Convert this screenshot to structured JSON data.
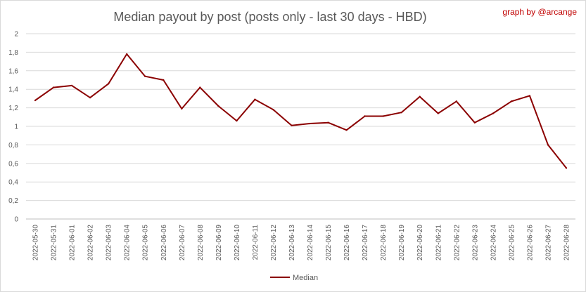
{
  "chart_data": {
    "type": "line",
    "title": "Median payout by post (posts only - last 30 days - HBD)",
    "credit": "graph by @arcange",
    "xlabel": "",
    "ylabel": "",
    "ylim": [
      0,
      2
    ],
    "yticks": [
      "0",
      "0,2",
      "0,4",
      "0,6",
      "0,8",
      "1",
      "1,2",
      "1,4",
      "1,6",
      "1,8",
      "2"
    ],
    "grid": true,
    "legend_position": "bottom",
    "categories": [
      "2022-05-30",
      "2022-05-31",
      "2022-06-01",
      "2022-06-02",
      "2022-06-03",
      "2022-06-04",
      "2022-06-05",
      "2022-06-06",
      "2022-06-07",
      "2022-06-08",
      "2022-06-09",
      "2022-06-10",
      "2022-06-11",
      "2022-06-12",
      "2022-06-13",
      "2022-06-14",
      "2022-06-15",
      "2022-06-16",
      "2022-06-17",
      "2022-06-18",
      "2022-06-19",
      "2022-06-20",
      "2022-06-21",
      "2022-06-22",
      "2022-06-23",
      "2022-06-24",
      "2022-06-25",
      "2022-06-26",
      "2022-06-27",
      "2022-06-28"
    ],
    "series": [
      {
        "name": "Median",
        "color": "#8b0000",
        "values": [
          1.28,
          1.42,
          1.44,
          1.31,
          1.46,
          1.78,
          1.54,
          1.5,
          1.19,
          1.42,
          1.22,
          1.06,
          1.29,
          1.18,
          1.01,
          1.03,
          1.04,
          0.96,
          1.11,
          1.11,
          1.15,
          1.32,
          1.14,
          1.27,
          1.04,
          1.14,
          1.27,
          1.33,
          0.8,
          0.55
        ]
      }
    ]
  }
}
